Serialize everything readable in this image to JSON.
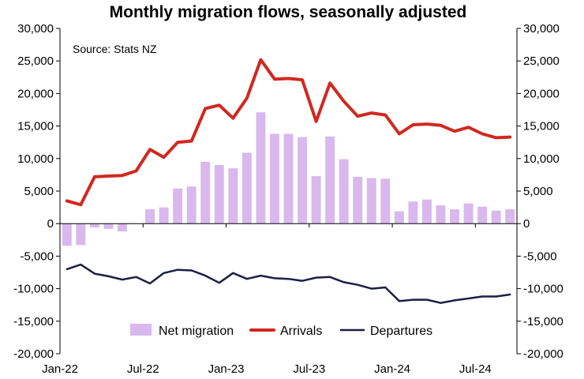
{
  "chart_data": {
    "type": "bar+line",
    "title": "Monthly migration flows, seasonally adjusted",
    "source": "Source: Stats NZ",
    "ylim": [
      -20000,
      30000
    ],
    "yticks": [
      30000,
      25000,
      20000,
      15000,
      10000,
      5000,
      0,
      -5000,
      -10000,
      -15000,
      -20000
    ],
    "ytick_labels": [
      "30,000",
      "25,000",
      "20,000",
      "15,000",
      "10,000",
      "5,000",
      "0",
      "-5,000",
      "-10,000",
      "-15,000",
      "-20,000"
    ],
    "secondary_axis": true,
    "x": [
      "2022-01",
      "2022-02",
      "2022-03",
      "2022-04",
      "2022-05",
      "2022-06",
      "2022-07",
      "2022-08",
      "2022-09",
      "2022-10",
      "2022-11",
      "2022-12",
      "2023-01",
      "2023-02",
      "2023-03",
      "2023-04",
      "2023-05",
      "2023-06",
      "2023-07",
      "2023-08",
      "2023-09",
      "2023-10",
      "2023-11",
      "2023-12",
      "2024-01",
      "2024-02",
      "2024-03",
      "2024-04",
      "2024-05",
      "2024-06",
      "2024-07",
      "2024-08",
      "2024-09"
    ],
    "xtick_labels": [
      {
        "at": "2022-01",
        "label": "Jan-22"
      },
      {
        "at": "2022-07",
        "label": "Jul-22"
      },
      {
        "at": "2023-01",
        "label": "Jan-23"
      },
      {
        "at": "2023-07",
        "label": "Jul-23"
      },
      {
        "at": "2024-01",
        "label": "Jan-24"
      },
      {
        "at": "2024-07",
        "label": "Jul-24"
      }
    ],
    "legend_position": "bottom-center",
    "series": [
      {
        "name": "Net migration",
        "type": "bar",
        "color": "#d9b8ee",
        "values": [
          -3400,
          -3300,
          -600,
          -800,
          -1200,
          0,
          2200,
          2500,
          5400,
          5700,
          9500,
          9000,
          8500,
          10900,
          17100,
          13800,
          13800,
          13300,
          7300,
          13400,
          9900,
          7200,
          7000,
          6900,
          1900,
          3400,
          3700,
          2800,
          2200,
          3100,
          2600,
          2000,
          2200
        ]
      },
      {
        "name": "Arrivals",
        "type": "line",
        "color": "#d0281f",
        "values": [
          3500,
          2900,
          7200,
          7300,
          7400,
          8100,
          11400,
          10200,
          12500,
          12700,
          17700,
          18200,
          16200,
          19300,
          25200,
          22200,
          22300,
          22100,
          15700,
          21600,
          18800,
          16500,
          17000,
          16700,
          13800,
          15200,
          15300,
          15100,
          14200,
          14800,
          13800,
          13200,
          13300
        ]
      },
      {
        "name": "Departures",
        "type": "line",
        "color": "#1c1f45",
        "values": [
          -7000,
          -6300,
          -7700,
          -8100,
          -8600,
          -8200,
          -9200,
          -7600,
          -7100,
          -7200,
          -8000,
          -9100,
          -7600,
          -8500,
          -8000,
          -8400,
          -8500,
          -8800,
          -8300,
          -8200,
          -9000,
          -9400,
          -10000,
          -9800,
          -11900,
          -11700,
          -11700,
          -12200,
          -11800,
          -11500,
          -11200,
          -11200,
          -10900
        ]
      }
    ]
  }
}
